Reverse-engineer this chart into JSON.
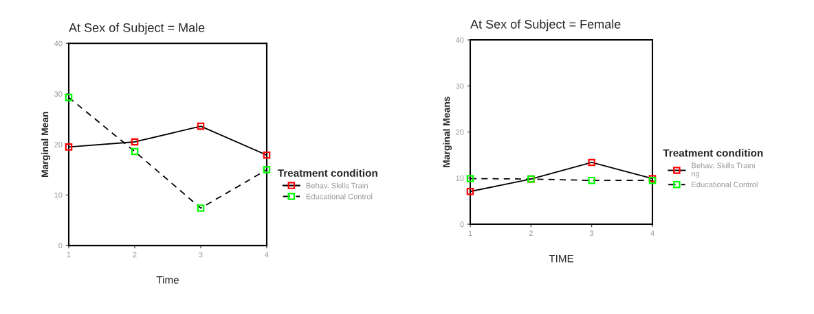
{
  "chart_data": [
    {
      "type": "line",
      "title": "At Sex of Subject = Male",
      "xlabel": "Time",
      "ylabel": "Marginal Mean",
      "legend_title": "Treatment condition",
      "legend": "right",
      "marker": "square",
      "grid": false,
      "x": [
        1,
        2,
        3,
        4
      ],
      "xlim": [
        1,
        4
      ],
      "xticks": [
        1,
        2,
        3,
        4
      ],
      "ylim": [
        0,
        40
      ],
      "yticks": [
        0,
        10,
        20,
        30,
        40
      ],
      "series": [
        {
          "name": "Behav. Skills Train",
          "color": "#ff0000",
          "line_style": "solid",
          "values": [
            19.5,
            20.5,
            23.6,
            17.9
          ]
        },
        {
          "name": "Educational Control",
          "color": "#00ff00",
          "line_style": "dashed",
          "values": [
            29.3,
            18.6,
            7.4,
            15.0
          ]
        }
      ]
    },
    {
      "type": "line",
      "title": "At Sex of Subject = Female",
      "xlabel": "TIME",
      "ylabel": "Marginal Means",
      "legend_title": "Treatment condition",
      "legend": "right",
      "marker": "square",
      "grid": false,
      "x": [
        1,
        2,
        3,
        4
      ],
      "xlim": [
        1,
        4
      ],
      "xticks": [
        1,
        2,
        3,
        4
      ],
      "ylim": [
        0,
        40
      ],
      "yticks": [
        0,
        10,
        20,
        30,
        40
      ],
      "series": [
        {
          "name": "Behav. Skills Traini\nng",
          "color": "#ff0000",
          "line_style": "solid",
          "values": [
            7.1,
            9.8,
            13.4,
            9.9
          ]
        },
        {
          "name": "Educational Control",
          "color": "#00ff00",
          "line_style": "dashed",
          "values": [
            9.9,
            9.8,
            9.5,
            9.5
          ]
        }
      ]
    }
  ]
}
